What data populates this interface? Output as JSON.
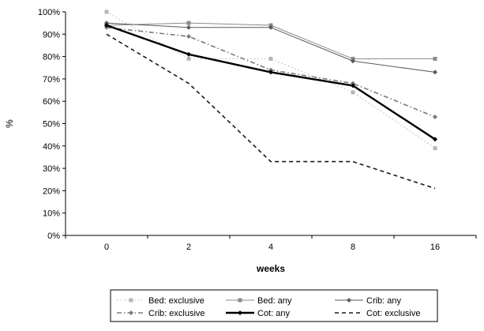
{
  "chart_data": {
    "type": "line",
    "title": "",
    "xlabel": "weeks",
    "ylabel": "%",
    "categories": [
      "0",
      "2",
      "4",
      "8",
      "16"
    ],
    "y_ticks": [
      "0%",
      "10%",
      "20%",
      "30%",
      "40%",
      "50%",
      "60%",
      "70%",
      "80%",
      "90%",
      "100%"
    ],
    "ylim": [
      0,
      100
    ],
    "grid": false,
    "legend_position": "bottom",
    "series": [
      {
        "name": "Bed: exclusive",
        "values": [
          100,
          79,
          79,
          64,
          39
        ],
        "color": "#b5b5b5",
        "dash": "dotted",
        "width": "thin",
        "marker": "square"
      },
      {
        "name": "Bed: any",
        "values": [
          94,
          95,
          94,
          79,
          79
        ],
        "color": "#8a8a8a",
        "dash": "solid",
        "width": "thin",
        "marker": "square"
      },
      {
        "name": "Crib: any",
        "values": [
          95,
          93,
          93,
          78,
          73
        ],
        "color": "#5a5a5a",
        "dash": "solid",
        "width": "thin",
        "marker": "diamond"
      },
      {
        "name": "Crib: exclusive",
        "values": [
          93,
          89,
          74,
          68,
          53
        ],
        "color": "#7a7a7a",
        "dash": "dashdot",
        "width": "medium",
        "marker": "diamond"
      },
      {
        "name": "Cot: any",
        "values": [
          94,
          81,
          73,
          67,
          43
        ],
        "color": "#000000",
        "dash": "solid",
        "width": "thick",
        "marker": "diamond"
      },
      {
        "name": "Cot: exclusive",
        "values": [
          90,
          68,
          33,
          33,
          21
        ],
        "color": "#1a1a1a",
        "dash": "dashed",
        "width": "medium",
        "marker": "none"
      }
    ]
  }
}
